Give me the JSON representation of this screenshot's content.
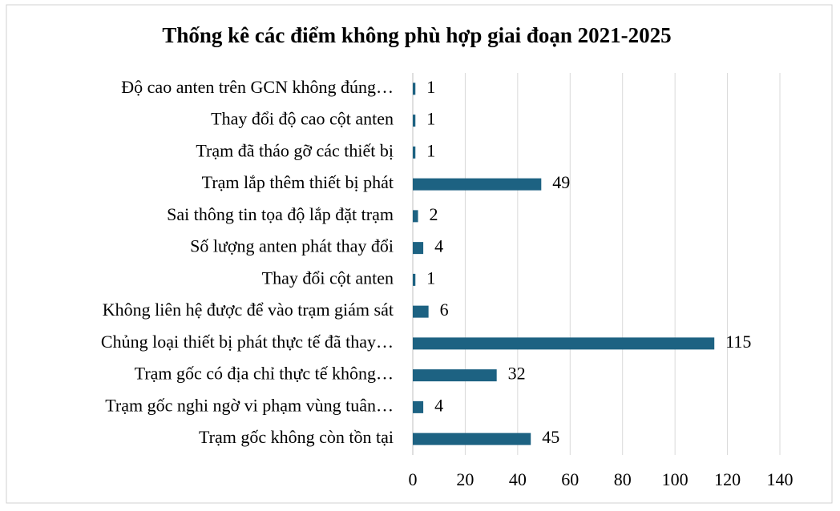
{
  "chart_data": {
    "type": "bar",
    "orientation": "horizontal",
    "title": "Thống kê các điểm không phù hợp giai đoạn 2021-2025",
    "categories": [
      "Độ cao anten trên GCN không đúng…",
      "Thay đổi độ cao cột anten",
      "Trạm đã tháo gỡ các thiết bị",
      "Trạm lắp thêm thiết bị phát",
      "Sai thông tin tọa độ lắp đặt trạm",
      "Số lượng anten phát thay đổi",
      "Thay đổi cột anten",
      "Không liên hệ được để vào trạm giám sát",
      "Chủng loại thiết bị phát thực tế đã thay…",
      "Trạm gốc có địa chỉ thực tế không…",
      "Trạm gốc nghi ngờ vi phạm vùng tuân…",
      "Trạm gốc không còn tồn tại"
    ],
    "values": [
      1,
      1,
      1,
      49,
      2,
      4,
      1,
      6,
      115,
      32,
      4,
      45
    ],
    "color": "#1d6282",
    "xlim": [
      0,
      140
    ],
    "xticks": [
      0,
      20,
      40,
      60,
      80,
      100,
      120,
      140
    ],
    "grid": true
  }
}
